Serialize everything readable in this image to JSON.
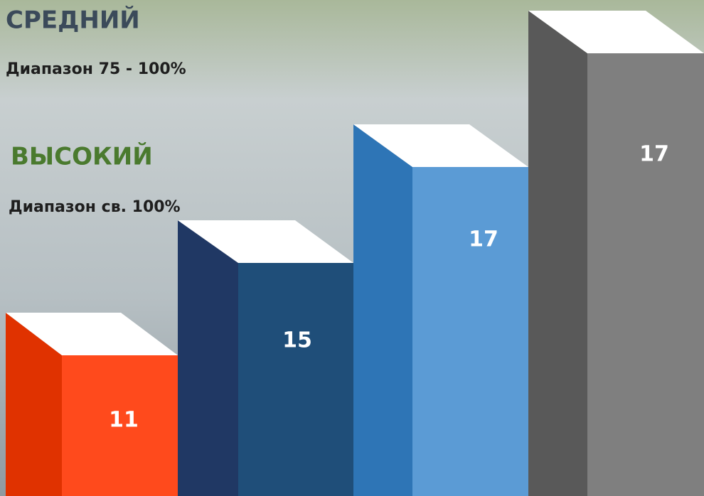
{
  "legend": [
    {
      "title": "СРЕДНИЙ",
      "range": "Диапазон 75 - 100%"
    },
    {
      "title": "ВЫСОКИЙ",
      "range": "Диапазон св. 100%"
    }
  ],
  "columns": [
    11,
    15,
    17,
    17
  ]
}
